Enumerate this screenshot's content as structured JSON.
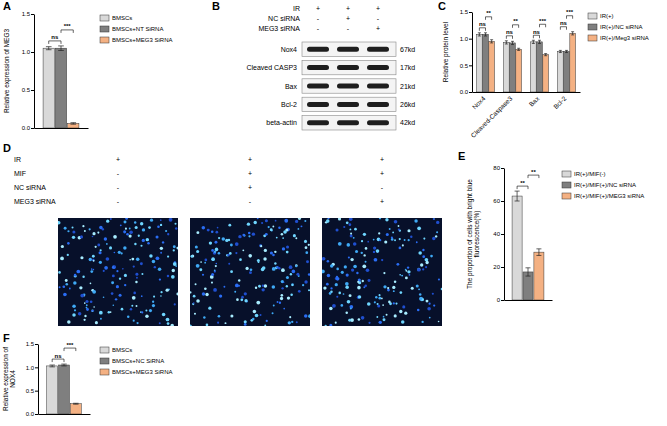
{
  "chart_data": [
    {
      "panel": "A",
      "type": "bar",
      "y_label": "Relative expression of MEG3",
      "categories": [
        null
      ],
      "series": [
        {
          "name": "BMSCs",
          "color": "#d9d9d9",
          "values": [
            1.05
          ],
          "errors": [
            0.02
          ]
        },
        {
          "name": "BMSCs+NT SiRNA",
          "color": "#7f7f7f",
          "values": [
            1.05
          ],
          "errors": [
            0.03
          ]
        },
        {
          "name": "BMSCs+MEG3 SiRNA",
          "color": "#f4b183",
          "values": [
            0.06
          ],
          "errors": [
            0.01
          ]
        }
      ],
      "ylim": [
        0,
        1.5
      ],
      "yticks": [
        {
          "value": 0,
          "label": "0.0"
        },
        {
          "value": 0.5,
          "label": "0.5"
        },
        {
          "value": 1,
          "label": "1.0"
        },
        {
          "value": 1.5,
          "label": "1.5"
        }
      ],
      "grid": false,
      "legend": "right",
      "tick_labels": "y",
      "annotations": [
        {
          "text": "ns",
          "category": 0,
          "from": 0,
          "to": 1
        },
        {
          "text": "***",
          "category": 0,
          "from": 1,
          "to": 2
        }
      ]
    },
    {
      "panel": "C",
      "type": "bar",
      "y_label": "Relative protein level",
      "categories": [
        "Nox4",
        "Cleaved-Caspase3",
        "Bax",
        "Bcl-2"
      ],
      "series": [
        {
          "name": "IR(+)",
          "color": "#d9d9d9",
          "values": [
            1.08,
            0.93,
            0.94,
            0.76
          ],
          "errors": [
            0.03,
            0.03,
            0.03,
            0.02
          ]
        },
        {
          "name": "IR(+)/NC siRNA",
          "color": "#7f7f7f",
          "values": [
            1.08,
            0.92,
            0.94,
            0.76
          ],
          "errors": [
            0.03,
            0.03,
            0.03,
            0.02
          ]
        },
        {
          "name": "IR(+)/Meg3 siRNA",
          "color": "#f4b183",
          "values": [
            0.95,
            0.8,
            0.7,
            1.1
          ],
          "errors": [
            0.03,
            0.02,
            0.02,
            0.03
          ]
        }
      ],
      "ylim": [
        0,
        1.5
      ],
      "yticks": [
        {
          "value": 0,
          "label": "0.0"
        },
        {
          "value": 0.5,
          "label": "0.5"
        },
        {
          "value": 1,
          "label": "1.0"
        },
        {
          "value": 1.5,
          "label": "1.5"
        }
      ],
      "grid": false,
      "legend": "right",
      "annotations": [
        {
          "text": "ns",
          "category": 0,
          "from": 0,
          "to": 1
        },
        {
          "text": "**",
          "category": 0,
          "from": 1,
          "to": 2
        },
        {
          "text": "ns",
          "category": 1,
          "from": 0,
          "to": 1
        },
        {
          "text": "**",
          "category": 1,
          "from": 1,
          "to": 2
        },
        {
          "text": "ns",
          "category": 2,
          "from": 0,
          "to": 1
        },
        {
          "text": "***",
          "category": 2,
          "from": 1,
          "to": 2
        },
        {
          "text": "ns",
          "category": 3,
          "from": 0,
          "to": 1
        },
        {
          "text": "***",
          "category": 3,
          "from": 1,
          "to": 2
        }
      ]
    },
    {
      "panel": "E",
      "type": "bar",
      "y_label": "The proportion of cells with bright blue fluorescence(%)",
      "categories": [
        null
      ],
      "series": [
        {
          "name": "IR(+)/MIF(-)",
          "color": "#d9d9d9",
          "values": [
            63
          ],
          "errors": [
            3
          ]
        },
        {
          "name": "IR(+)/MIF(+)/NC siRNA",
          "color": "#7f7f7f",
          "values": [
            17
          ],
          "errors": [
            2.5
          ]
        },
        {
          "name": "IR(+)/MIF(+)/MEG3 siRNA",
          "color": "#f4b183",
          "values": [
            29
          ],
          "errors": [
            2
          ]
        }
      ],
      "ylim": [
        0,
        80
      ],
      "yticks": [
        0,
        20,
        40,
        60,
        80
      ],
      "grid": false,
      "legend": "right",
      "tick_labels": "y",
      "annotations": [
        {
          "text": "**",
          "category": 0,
          "from": 0,
          "to": 1
        },
        {
          "text": "**",
          "category": 0,
          "from": 1,
          "to": 2
        }
      ]
    },
    {
      "panel": "F",
      "type": "bar",
      "y_label": "Relative expression of NOX4",
      "categories": [
        null
      ],
      "series": [
        {
          "name": "BMSCs",
          "color": "#d9d9d9",
          "values": [
            1.03
          ],
          "errors": [
            0.02
          ]
        },
        {
          "name": "BMSCs+NC SiRNA",
          "color": "#7f7f7f",
          "values": [
            1.05
          ],
          "errors": [
            0.02
          ]
        },
        {
          "name": "BMSCs+MEG3 SiRNA",
          "color": "#f4b183",
          "values": [
            0.22
          ],
          "errors": [
            0.01
          ]
        }
      ],
      "ylim": [
        0,
        1.5
      ],
      "yticks": [
        {
          "value": 0,
          "label": "0.0"
        },
        {
          "value": 0.5,
          "label": "0.5"
        },
        {
          "value": 1,
          "label": "1.0"
        },
        {
          "value": 1.5,
          "label": "1.5"
        }
      ],
      "grid": false,
      "legend": "right",
      "tick_labels": "y",
      "annotations": [
        {
          "text": "ns",
          "category": 0,
          "from": 0,
          "to": 1
        },
        {
          "text": "***",
          "category": 0,
          "from": 1,
          "to": 2
        }
      ]
    }
  ],
  "blot": {
    "panel": "B",
    "conditions": [
      {
        "label": "IR",
        "marks": [
          "+",
          "+",
          "+"
        ]
      },
      {
        "label": "NC siRNA",
        "marks": [
          "-",
          "+",
          "-"
        ]
      },
      {
        "label": "MEG3 siRNA",
        "marks": [
          "-",
          "-",
          "+"
        ]
      }
    ],
    "bands": [
      {
        "label": "Nox4",
        "size": "67kd"
      },
      {
        "label": "Cleaved CASP3",
        "size": "17kd"
      },
      {
        "label": "Bax",
        "size": "21kd"
      },
      {
        "label": "Bcl-2",
        "size": "26kd"
      },
      {
        "label": "beta-actin",
        "size": "42kd"
      }
    ]
  },
  "micrograph": {
    "panel": "D",
    "conditions": [
      {
        "label": "IR",
        "marks": [
          "+",
          "+",
          "+"
        ]
      },
      {
        "label": "MIF",
        "marks": [
          "-",
          "+",
          "+"
        ]
      },
      {
        "label": "NC siRNA",
        "marks": [
          "-",
          "+",
          "-"
        ]
      },
      {
        "label": "MEG3 siRNA",
        "marks": [
          "-",
          "-",
          "+"
        ]
      }
    ]
  }
}
